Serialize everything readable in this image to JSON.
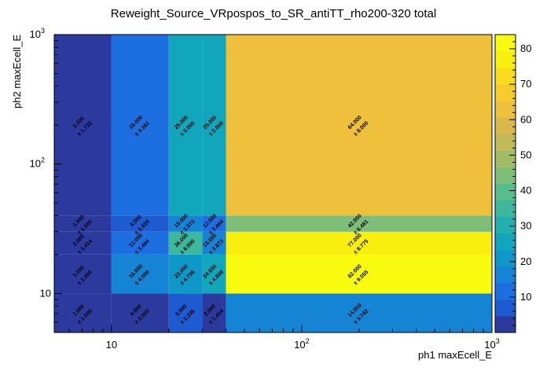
{
  "chart_data": {
    "type": "heatmap",
    "title": "Reweight_Source_VRpospos_to_SR_antiTT_rho200-320 total",
    "xlabel": "ph1 maxEcell_E",
    "ylabel": "ph2 maxEcell_E",
    "xscale": "log",
    "yscale": "log",
    "xlim": [
      5,
      1000
    ],
    "ylim": [
      5,
      1000
    ],
    "x_bin_edges": [
      5,
      10,
      20,
      30,
      40,
      1000
    ],
    "y_bin_edges": [
      5,
      10,
      20,
      30,
      40,
      1000
    ],
    "x_ticks": [
      {
        "value": 10,
        "base": "10",
        "exp": ""
      },
      {
        "value": 100,
        "base": "10",
        "exp": "2"
      },
      {
        "value": 1000,
        "base": "10",
        "exp": "3"
      }
    ],
    "y_ticks": [
      {
        "value": 10,
        "base": "10",
        "exp": ""
      },
      {
        "value": 100,
        "base": "10",
        "exp": "2"
      },
      {
        "value": 1000,
        "base": "10",
        "exp": "3"
      }
    ],
    "z_range": [
      0,
      84
    ],
    "colorbar_ticks": [
      "10",
      "20",
      "30",
      "40",
      "50",
      "60",
      "70",
      "80"
    ],
    "colorbar_tick_values": [
      10,
      20,
      30,
      40,
      50,
      60,
      70,
      80
    ],
    "cells": [
      {
        "xi": 0,
        "yi": 0,
        "value": 1,
        "label": "1.000",
        "err": "± 1.000"
      },
      {
        "xi": 1,
        "yi": 0,
        "value": 4,
        "label": "4.000",
        "err": "± 2.000"
      },
      {
        "xi": 2,
        "yi": 0,
        "value": 5,
        "label": "5.000",
        "err": "± 2.236"
      },
      {
        "xi": 3,
        "yi": 0,
        "value": 2,
        "label": "2.000",
        "err": "± 1.414"
      },
      {
        "xi": 4,
        "yi": 0,
        "value": 14,
        "label": "14.000",
        "err": "± 3.742"
      },
      {
        "xi": 0,
        "yi": 1,
        "value": 1,
        "label": "1.000",
        "err": "± 1.000"
      },
      {
        "xi": 1,
        "yi": 1,
        "value": 16,
        "label": "16.000",
        "err": "± 4.000"
      },
      {
        "xi": 2,
        "yi": 1,
        "value": 23,
        "label": "23.000",
        "err": "± 4.796"
      },
      {
        "xi": 3,
        "yi": 1,
        "value": 24,
        "label": "24.000",
        "err": "± 4.899"
      },
      {
        "xi": 4,
        "yi": 1,
        "value": 82,
        "label": "82.000",
        "err": "± 9.055"
      },
      {
        "xi": 0,
        "yi": 2,
        "value": 2,
        "label": "2.000",
        "err": "± 1.414"
      },
      {
        "xi": 1,
        "yi": 2,
        "value": 12,
        "label": "12.000",
        "err": "± 3.464"
      },
      {
        "xi": 2,
        "yi": 2,
        "value": 36,
        "label": "36.000",
        "err": "± 6.000"
      },
      {
        "xi": 3,
        "yi": 2,
        "value": 15,
        "label": "15.000",
        "err": "± 3.873"
      },
      {
        "xi": 4,
        "yi": 2,
        "value": 77,
        "label": "77.000",
        "err": "± 8.775"
      },
      {
        "xi": 0,
        "yi": 3,
        "value": 1,
        "label": "1.000",
        "err": "± 1.000"
      },
      {
        "xi": 1,
        "yi": 3,
        "value": 8,
        "label": "8.000",
        "err": "± 2.828"
      },
      {
        "xi": 2,
        "yi": 3,
        "value": 15,
        "label": "15.000",
        "err": "± 3.873"
      },
      {
        "xi": 3,
        "yi": 3,
        "value": 12,
        "label": "12.000",
        "err": "± 3.464"
      },
      {
        "xi": 4,
        "yi": 3,
        "value": 42,
        "label": "42.000",
        "err": "± 6.481"
      },
      {
        "xi": 0,
        "yi": 4,
        "value": 3,
        "label": "3.000",
        "err": "± 1.732"
      },
      {
        "xi": 1,
        "yi": 4,
        "value": 10,
        "label": "10.000",
        "err": "± 3.162"
      },
      {
        "xi": 2,
        "yi": 4,
        "value": 25,
        "label": "25.000",
        "err": "± 5.000"
      },
      {
        "xi": 3,
        "yi": 4,
        "value": 25,
        "label": "25.000",
        "err": "± 5.000"
      },
      {
        "xi": 4,
        "yi": 4,
        "value": 64,
        "label": "64.000",
        "err": "± 8.000"
      }
    ],
    "palette": [
      "#2c3a9e",
      "#1e5bd0",
      "#1d6ee0",
      "#1584d4",
      "#0e98c8",
      "#12a6bd",
      "#22afb0",
      "#3cb89e",
      "#57bd8c",
      "#7dbe78",
      "#a2bc66",
      "#c1ba57",
      "#dab94c",
      "#eec03b",
      "#f7cb2c",
      "#f8dc1d",
      "#f9ef0f",
      "#f9fb0e"
    ]
  }
}
